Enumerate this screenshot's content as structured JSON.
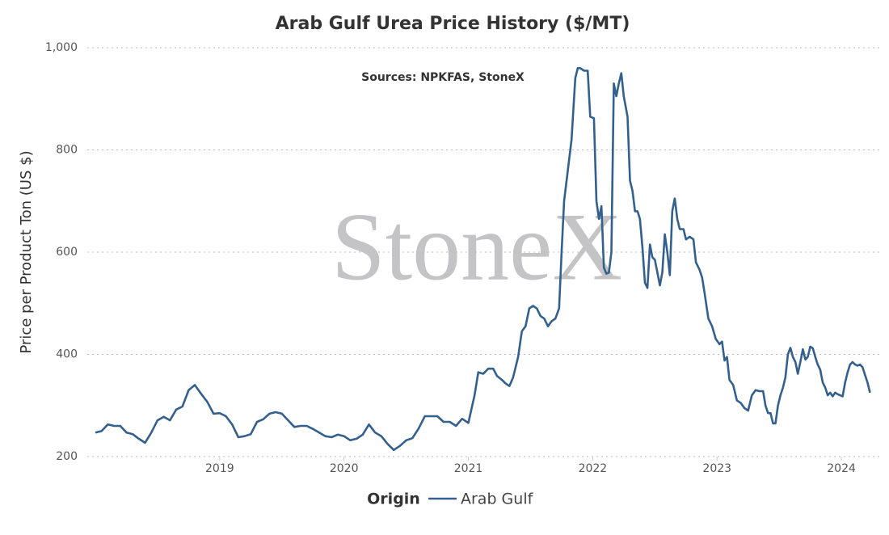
{
  "chart_data": {
    "type": "line",
    "title": "Arab Gulf Urea Price History ($/MT)",
    "subtitle": "Sources: NPKFAS, StoneX",
    "watermark": "StoneX",
    "y_label": "Price per Product Ton (US $)",
    "legend_title": "Origin",
    "legend": "bottom",
    "grid": true,
    "xlim": [
      2017.935,
      2024.305
    ],
    "xticks": [
      2019,
      2020,
      2021,
      2022,
      2023,
      2024
    ],
    "ylim": [
      200,
      1000
    ],
    "yticks": [
      200,
      400,
      600,
      800,
      {
        "value": 1000,
        "label": "1,000"
      }
    ],
    "x": [
      2018.0,
      2018.05,
      2018.1,
      2018.15,
      2018.2,
      2018.25,
      2018.3,
      2018.35,
      2018.4,
      2018.45,
      2018.5,
      2018.55,
      2018.6,
      2018.65,
      2018.7,
      2018.75,
      2018.8,
      2018.85,
      2018.9,
      2018.95,
      2019.0,
      2019.05,
      2019.1,
      2019.15,
      2019.2,
      2019.25,
      2019.3,
      2019.35,
      2019.4,
      2019.45,
      2019.5,
      2019.55,
      2019.6,
      2019.65,
      2019.7,
      2019.75,
      2019.8,
      2019.85,
      2019.9,
      2019.95,
      2020.0,
      2020.05,
      2020.1,
      2020.15,
      2020.2,
      2020.25,
      2020.3,
      2020.35,
      2020.4,
      2020.45,
      2020.5,
      2020.55,
      2020.6,
      2020.65,
      2020.7,
      2020.75,
      2020.8,
      2020.85,
      2020.9,
      2020.95,
      2021.0,
      2021.05,
      2021.08,
      2021.12,
      2021.16,
      2021.2,
      2021.23,
      2021.27,
      2021.3,
      2021.33,
      2021.36,
      2021.4,
      2021.43,
      2021.46,
      2021.49,
      2021.52,
      2021.55,
      2021.58,
      2021.61,
      2021.64,
      2021.67,
      2021.7,
      2021.73,
      2021.75,
      2021.77,
      2021.8,
      2021.83,
      2021.86,
      2021.88,
      2021.9,
      2021.93,
      2021.96,
      2021.98,
      2022.01,
      2022.03,
      2022.05,
      2022.07,
      2022.09,
      2022.11,
      2022.13,
      2022.15,
      2022.17,
      2022.19,
      2022.21,
      2022.23,
      2022.25,
      2022.28,
      2022.3,
      2022.32,
      2022.34,
      2022.36,
      2022.38,
      2022.4,
      2022.42,
      2022.44,
      2022.46,
      2022.48,
      2022.5,
      2022.52,
      2022.54,
      2022.56,
      2022.58,
      2022.6,
      2022.62,
      2022.64,
      2022.66,
      2022.68,
      2022.7,
      2022.73,
      2022.75,
      2022.78,
      2022.81,
      2022.83,
      2022.86,
      2022.88,
      2022.9,
      2022.93,
      2022.96,
      2022.99,
      2023.02,
      2023.04,
      2023.06,
      2023.08,
      2023.1,
      2023.13,
      2023.16,
      2023.19,
      2023.22,
      2023.25,
      2023.28,
      2023.31,
      2023.34,
      2023.37,
      2023.39,
      2023.41,
      2023.43,
      2023.45,
      2023.47,
      2023.49,
      2023.51,
      2023.53,
      2023.55,
      2023.57,
      2023.59,
      2023.61,
      2023.63,
      2023.65,
      2023.67,
      2023.69,
      2023.71,
      2023.73,
      2023.75,
      2023.77,
      2023.79,
      2023.81,
      2023.83,
      2023.85,
      2023.87,
      2023.89,
      2023.91,
      2023.93,
      2023.95,
      2023.97,
      2023.99,
      2024.01,
      2024.03,
      2024.05,
      2024.07,
      2024.09,
      2024.11,
      2024.13,
      2024.15,
      2024.17,
      2024.19,
      2024.21,
      2024.23
    ],
    "series": [
      {
        "name": "Arab Gulf",
        "color": "#34608f",
        "values": [
          247,
          250,
          263,
          260,
          260,
          247,
          244,
          235,
          227,
          247,
          271,
          278,
          271,
          292,
          298,
          330,
          340,
          323,
          307,
          284,
          285,
          279,
          263,
          238,
          240,
          244,
          268,
          273,
          284,
          287,
          284,
          271,
          258,
          260,
          260,
          254,
          247,
          240,
          238,
          243,
          240,
          232,
          235,
          243,
          263,
          247,
          240,
          225,
          213,
          221,
          232,
          236,
          255,
          279,
          279,
          279,
          268,
          268,
          260,
          274,
          266,
          320,
          365,
          362,
          372,
          372,
          358,
          350,
          343,
          338,
          355,
          395,
          445,
          455,
          490,
          495,
          490,
          475,
          470,
          455,
          465,
          470,
          490,
          600,
          700,
          760,
          820,
          940,
          960,
          960,
          955,
          955,
          865,
          862,
          700,
          665,
          690,
          570,
          558,
          560,
          600,
          930,
          905,
          930,
          950,
          905,
          865,
          740,
          720,
          680,
          680,
          665,
          610,
          540,
          530,
          615,
          590,
          585,
          560,
          535,
          560,
          635,
          600,
          555,
          680,
          705,
          665,
          645,
          645,
          625,
          630,
          625,
          580,
          565,
          550,
          520,
          470,
          455,
          430,
          420,
          425,
          388,
          395,
          350,
          340,
          310,
          305,
          295,
          290,
          320,
          330,
          328,
          328,
          300,
          285,
          285,
          265,
          265,
          300,
          320,
          335,
          355,
          400,
          413,
          395,
          385,
          362,
          385,
          410,
          390,
          395,
          415,
          412,
          395,
          380,
          370,
          345,
          335,
          320,
          325,
          318,
          325,
          322,
          320,
          318,
          345,
          365,
          380,
          385,
          380,
          378,
          380,
          375,
          360,
          345,
          325
        ]
      }
    ]
  }
}
